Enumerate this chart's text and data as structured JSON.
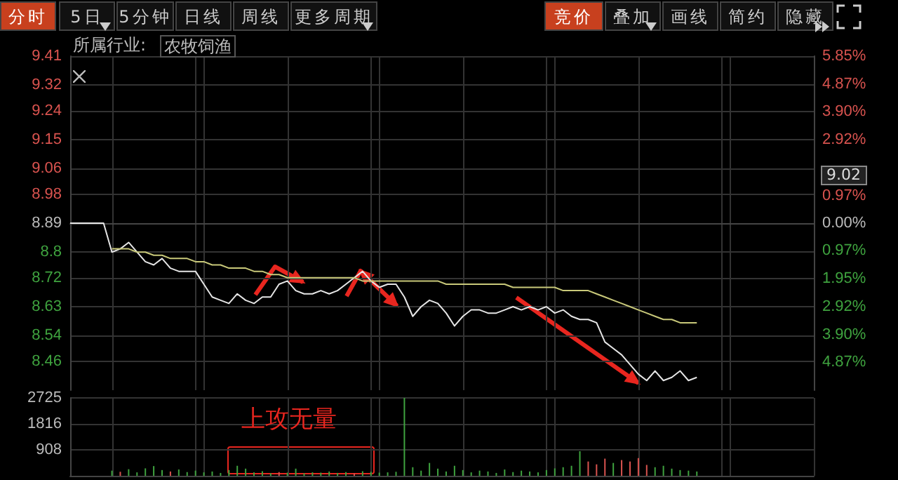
{
  "chart_data": [
    {
      "type": "line",
      "annotations": [
        "分时",
        "5日",
        "5分钟",
        "日线",
        "周线",
        "更多周期",
        "竞价",
        "叠加",
        "画线",
        "简约",
        "隐藏",
        "所属行业:",
        "农牧饲渔",
        "9.02"
      ],
      "categories": [
        null,
        null,
        null,
        null,
        null,
        null,
        null,
        null,
        null,
        null,
        null,
        null,
        null,
        null,
        null,
        null,
        null,
        null,
        null,
        null,
        null,
        null,
        null,
        null,
        null,
        null,
        null,
        null,
        null,
        null,
        null,
        null,
        null,
        null,
        null,
        null,
        null,
        null,
        null,
        null,
        null,
        null,
        null,
        null,
        null,
        null,
        null,
        null,
        null,
        null,
        null,
        null,
        null,
        null,
        null,
        null,
        null,
        null,
        null,
        null,
        null,
        null,
        null,
        null,
        null,
        null,
        null,
        null,
        null,
        null,
        null,
        null,
        null,
        null,
        null,
        null,
        null,
        null,
        null,
        null,
        null,
        null,
        null,
        null,
        null,
        null,
        null,
        null,
        null,
        null
      ],
      "series": [
        {
          "color": "#e6e6e6",
          "values": [
            8.89,
            8.89,
            8.89,
            8.89,
            8.89,
            8.8,
            8.81,
            8.83,
            8.8,
            8.77,
            8.76,
            8.78,
            8.75,
            8.74,
            8.74,
            8.74,
            8.7,
            8.66,
            8.65,
            8.64,
            8.67,
            8.65,
            8.64,
            8.66,
            8.66,
            8.7,
            8.71,
            8.68,
            8.67,
            8.67,
            8.68,
            8.67,
            8.68,
            8.7,
            8.72,
            8.74,
            8.71,
            8.69,
            8.7,
            8.7,
            8.66,
            8.6,
            8.63,
            8.65,
            8.64,
            8.61,
            8.57,
            8.6,
            8.62,
            8.62,
            8.61,
            8.61,
            8.62,
            8.63,
            8.62,
            8.63,
            8.62,
            8.63,
            8.61,
            8.62,
            8.6,
            8.59,
            8.59,
            8.58,
            8.52,
            8.5,
            8.48,
            8.45,
            8.42,
            8.4,
            8.43,
            8.4,
            8.41,
            8.43,
            8.4,
            8.41,
            null,
            null,
            null,
            null,
            null,
            null,
            null,
            null,
            null,
            null,
            null,
            null,
            null,
            null
          ]
        },
        {
          "color": "#c9c97a",
          "values": [
            null,
            null,
            null,
            null,
            null,
            8.81,
            8.81,
            8.81,
            8.8,
            8.8,
            8.79,
            8.79,
            8.78,
            8.78,
            8.78,
            8.77,
            8.77,
            8.76,
            8.76,
            8.75,
            8.75,
            8.75,
            8.74,
            8.74,
            8.73,
            8.73,
            8.72,
            8.72,
            8.72,
            8.72,
            8.72,
            8.72,
            8.72,
            8.72,
            8.72,
            8.71,
            8.71,
            8.71,
            8.71,
            8.71,
            8.71,
            8.71,
            8.71,
            8.71,
            8.71,
            8.7,
            8.7,
            8.7,
            8.7,
            8.7,
            8.7,
            8.7,
            8.7,
            8.69,
            8.69,
            8.69,
            8.69,
            8.69,
            8.69,
            8.68,
            8.68,
            8.68,
            8.68,
            8.67,
            8.66,
            8.65,
            8.64,
            8.63,
            8.62,
            8.61,
            8.6,
            8.59,
            8.59,
            8.58,
            8.58,
            8.58,
            null,
            null,
            null,
            null,
            null,
            null,
            null,
            null,
            null,
            null,
            null,
            null,
            null,
            null
          ]
        }
      ],
      "ylim": [
        8.37,
        9.41
      ],
      "yticks": [
        9.41,
        9.32,
        9.24,
        9.15,
        9.06,
        8.98,
        8.89,
        8.8,
        8.72,
        8.63,
        8.54,
        8.46
      ],
      "y2lim": [
        -5.85,
        5.85
      ],
      "y2ticks": [
        {
          "value": 5.85,
          "label": "5.85%"
        },
        {
          "value": 4.87,
          "label": "4.87%"
        },
        {
          "value": 3.9,
          "label": "3.90%"
        },
        {
          "value": 2.92,
          "label": "2.92%"
        },
        {
          "value": 1.95,
          "label": null
        },
        {
          "value": 0.97,
          "label": "0.97%"
        },
        {
          "value": 0,
          "label": "0.00%"
        },
        {
          "value": -0.97,
          "label": "0.97%"
        },
        {
          "value": -1.95,
          "label": "1.95%"
        },
        {
          "value": -2.92,
          "label": "2.92%"
        },
        {
          "value": -3.9,
          "label": "3.90%"
        },
        {
          "value": -4.87,
          "label": "4.87%"
        }
      ],
      "tick_labels": "y",
      "grid": true
    },
    {
      "type": "bar",
      "annotations": [
        "上攻无量"
      ],
      "categories": [
        null,
        null,
        null,
        null,
        null,
        null,
        null,
        null,
        null,
        null,
        null,
        null,
        null,
        null,
        null,
        null,
        null,
        null,
        null,
        null,
        null,
        null,
        null,
        null,
        null,
        null,
        null,
        null,
        null,
        null,
        null,
        null,
        null,
        null,
        null,
        null,
        null,
        null,
        null,
        null,
        null,
        null,
        null,
        null,
        null,
        null,
        null,
        null,
        null,
        null,
        null,
        null,
        null,
        null,
        null,
        null,
        null,
        null,
        null,
        null,
        null,
        null,
        null,
        null,
        null,
        null,
        null,
        null,
        null,
        null,
        null,
        null,
        null,
        null,
        null,
        null,
        null,
        null,
        null,
        null,
        null,
        null,
        null,
        null,
        null,
        null,
        null,
        null,
        null,
        null
      ],
      "values": [
        null,
        null,
        null,
        null,
        null,
        180,
        140,
        230,
        120,
        260,
        340,
        200,
        150,
        220,
        130,
        180,
        120,
        150,
        100,
        200,
        350,
        250,
        120,
        160,
        90,
        130,
        110,
        250,
        90,
        120,
        110,
        150,
        100,
        130,
        90,
        160,
        140,
        110,
        120,
        140,
        2725,
        300,
        180,
        450,
        250,
        150,
        350,
        200,
        120,
        180,
        150,
        100,
        220,
        130,
        180,
        150,
        120,
        200,
        260,
        300,
        350,
        860,
        500,
        400,
        600,
        450,
        550,
        500,
        620,
        380,
        300,
        350,
        250,
        200,
        180,
        150,
        null,
        null,
        null,
        null,
        null,
        null,
        null,
        null,
        null,
        null,
        null,
        null,
        null,
        null
      ],
      "colors": [
        "#3fa33f",
        "#3fa33f",
        "#3fa33f",
        "#3fa33f",
        "#3fa33f",
        "#3fa33f",
        "#d9534f",
        "#3fa33f",
        "#3fa33f",
        "#3fa33f",
        "#3fa33f",
        "#3fa33f",
        "#d9534f",
        "#3fa33f",
        "#3fa33f",
        "#3fa33f",
        "#3fa33f",
        "#3fa33f",
        "#3fa33f",
        "#3fa33f",
        "#3fa33f",
        "#3fa33f",
        "#3fa33f",
        "#3fa33f",
        "#3fa33f",
        "#d9534f",
        "#3fa33f",
        "#3fa33f",
        "#3fa33f",
        "#3fa33f",
        "#3fa33f",
        "#3fa33f",
        "#3fa33f",
        "#3fa33f",
        "#d9534f",
        "#3fa33f",
        "#3fa33f",
        "#3fa33f",
        "#3fa33f",
        "#3fa33f",
        "#3fa33f",
        "#3fa33f",
        "#3fa33f",
        "#3fa33f",
        "#3fa33f",
        "#3fa33f",
        "#3fa33f",
        "#3fa33f",
        "#3fa33f",
        "#3fa33f",
        "#3fa33f",
        "#3fa33f",
        "#3fa33f",
        "#3fa33f",
        "#3fa33f",
        "#3fa33f",
        "#3fa33f",
        "#3fa33f",
        "#3fa33f",
        "#3fa33f",
        "#3fa33f",
        "#3fa33f",
        "#d9534f",
        "#d9534f",
        "#d9534f",
        "#3fa33f",
        "#d9534f",
        "#d9534f",
        "#d9534f",
        "#d9534f",
        "#3fa33f",
        "#3fa33f",
        "#3fa33f",
        "#3fa33f",
        "#3fa33f",
        "#3fa33f",
        "#3fa33f",
        "#3fa33f",
        "#3fa33f",
        "#3fa33f",
        "#3fa33f",
        "#3fa33f",
        "#3fa33f",
        "#3fa33f",
        "#3fa33f",
        "#3fa33f",
        "#3fa33f",
        "#3fa33f",
        "#3fa33f",
        "#3fa33f"
      ],
      "ylim": [
        0,
        2725
      ],
      "yticks": [
        908,
        1816,
        2725
      ],
      "tick_labels": "y",
      "grid": true
    }
  ]
}
